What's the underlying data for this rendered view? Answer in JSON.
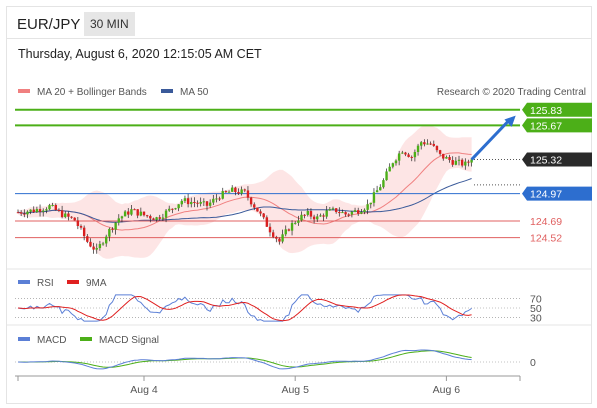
{
  "header": {
    "pair": "EUR/JPY",
    "timeframe": "30 MIN",
    "datetime": "Thursday, August 6, 2020 12:15:05 AM CET"
  },
  "colors": {
    "resistance": "#4caf18",
    "support": "#2d6ecf",
    "pivot": "#e06060",
    "ma20": "#f08080",
    "ma50": "#3a5a9a",
    "bands": "#fde0e0",
    "up": "#4caf18",
    "down": "#d92020",
    "last": "#2a2a2a",
    "rsi": "#5b7fd6",
    "rsi9": "#e02020",
    "macd": "#5b7fd6",
    "macdsig": "#4caf18",
    "arrow": "#2d6ecf"
  },
  "chart_data": [
    {
      "type": "candlestick",
      "legend": [
        {
          "label": "MA 20 + Bollinger Bands",
          "color": "#f08080"
        },
        {
          "label": "MA 50",
          "color": "#3a5a9a"
        }
      ],
      "credit": "Research © 2020 Trading Central",
      "levels": [
        {
          "value": 125.83,
          "label": "125.83",
          "kind": "resistance",
          "style": "box"
        },
        {
          "value": 125.67,
          "label": "125.67",
          "kind": "resistance",
          "style": "box"
        },
        {
          "value": 125.32,
          "label": "125.32",
          "kind": "last",
          "style": "box"
        },
        {
          "value": 124.97,
          "label": "124.97",
          "kind": "support",
          "style": "box"
        },
        {
          "value": 124.69,
          "label": "124.69",
          "kind": "pivot",
          "style": "text"
        },
        {
          "value": 124.52,
          "label": "124.52",
          "kind": "pivot",
          "style": "text"
        }
      ],
      "y_range": [
        124.27,
        125.93
      ],
      "x_labels": [
        {
          "label": "Aug 4",
          "index": 40
        },
        {
          "label": "Aug 5",
          "index": 88
        },
        {
          "label": "Aug 6",
          "index": 136
        }
      ],
      "anchors": [
        [
          0,
          124.78
        ],
        [
          5,
          124.8
        ],
        [
          10,
          124.84
        ],
        [
          15,
          124.74
        ],
        [
          18,
          124.7
        ],
        [
          22,
          124.48
        ],
        [
          25,
          124.38
        ],
        [
          28,
          124.55
        ],
        [
          32,
          124.72
        ],
        [
          36,
          124.8
        ],
        [
          40,
          124.75
        ],
        [
          44,
          124.72
        ],
        [
          48,
          124.8
        ],
        [
          52,
          124.9
        ],
        [
          56,
          124.88
        ],
        [
          60,
          124.85
        ],
        [
          64,
          124.95
        ],
        [
          68,
          125.0
        ],
        [
          72,
          124.98
        ],
        [
          76,
          124.8
        ],
        [
          80,
          124.6
        ],
        [
          83,
          124.48
        ],
        [
          86,
          124.62
        ],
        [
          89,
          124.72
        ],
        [
          92,
          124.76
        ],
        [
          95,
          124.72
        ],
        [
          98,
          124.78
        ],
        [
          101,
          124.8
        ],
        [
          104,
          124.76
        ],
        [
          108,
          124.8
        ],
        [
          111,
          124.85
        ],
        [
          113,
          124.95
        ],
        [
          116,
          125.1
        ],
        [
          119,
          125.3
        ],
        [
          122,
          125.42
        ],
        [
          125,
          125.35
        ],
        [
          128,
          125.5
        ],
        [
          131,
          125.48
        ],
        [
          134,
          125.36
        ],
        [
          138,
          125.3
        ],
        [
          142,
          125.27
        ],
        [
          144,
          125.32
        ]
      ],
      "forecast_arrow": {
        "from": [
          144,
          125.32
        ],
        "to": [
          158,
          125.77
        ]
      }
    },
    {
      "type": "line",
      "panel": "RSI",
      "legend": [
        {
          "label": "RSI",
          "color": "#5b7fd6"
        },
        {
          "label": "9MA",
          "color": "#e02020"
        }
      ],
      "levels": [
        {
          "value": 70,
          "label": "70"
        },
        {
          "value": 50,
          "label": "50"
        },
        {
          "value": 30,
          "label": "30"
        }
      ],
      "y_range": [
        0,
        100
      ]
    },
    {
      "type": "line",
      "panel": "MACD",
      "legend": [
        {
          "label": "MACD",
          "color": "#5b7fd6"
        },
        {
          "label": "MACD Signal",
          "color": "#4caf18"
        }
      ],
      "levels": [
        {
          "value": 0,
          "label": "0"
        }
      ]
    }
  ]
}
